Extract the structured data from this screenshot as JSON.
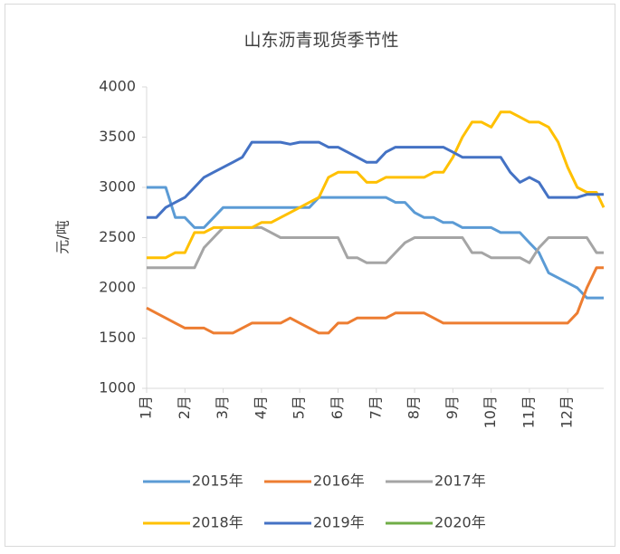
{
  "chart_data": {
    "type": "line",
    "title": "山东沥青现货季节性",
    "y_label": "元/吨",
    "x": [
      1,
      1.25,
      1.5,
      1.75,
      2,
      2.25,
      2.5,
      2.75,
      3,
      3.25,
      3.5,
      3.75,
      4,
      4.25,
      4.5,
      4.75,
      5,
      5.25,
      5.5,
      5.75,
      6,
      6.25,
      6.5,
      6.75,
      7,
      7.25,
      7.5,
      7.75,
      8,
      8.25,
      8.5,
      8.75,
      9,
      9.25,
      9.5,
      9.75,
      10,
      10.25,
      10.5,
      10.75,
      11,
      11.25,
      11.5,
      11.75,
      12,
      12.25,
      12.5,
      12.75,
      12.94
    ],
    "xlim": [
      1,
      12.94
    ],
    "xticks": [
      {
        "value": 1,
        "label": "1月"
      },
      {
        "value": 2,
        "label": "2月"
      },
      {
        "value": 3,
        "label": "3月"
      },
      {
        "value": 4,
        "label": "4月"
      },
      {
        "value": 5,
        "label": "5月"
      },
      {
        "value": 6,
        "label": "6月"
      },
      {
        "value": 7,
        "label": "7月"
      },
      {
        "value": 8,
        "label": "8月"
      },
      {
        "value": 9,
        "label": "9月"
      },
      {
        "value": 10,
        "label": "10月"
      },
      {
        "value": 11,
        "label": "11月"
      },
      {
        "value": 12,
        "label": "12月"
      }
    ],
    "ylim": [
      1000,
      4000
    ],
    "yticks": [
      1000,
      1500,
      2000,
      2500,
      3000,
      3500,
      4000
    ],
    "grid": false,
    "series": [
      {
        "name": "2015年",
        "color": "#5b9bd5",
        "values": [
          3000,
          3000,
          3000,
          2700,
          2700,
          2600,
          2600,
          2700,
          2800,
          2800,
          2800,
          2800,
          2800,
          2800,
          2800,
          2800,
          2800,
          2800,
          2900,
          2900,
          2900,
          2900,
          2900,
          2900,
          2900,
          2900,
          2850,
          2850,
          2750,
          2700,
          2700,
          2650,
          2650,
          2600,
          2600,
          2600,
          2600,
          2550,
          2550,
          2550,
          2450,
          2350,
          2150,
          2100,
          2050,
          2000,
          1900,
          1900,
          1900
        ]
      },
      {
        "name": "2016年",
        "color": "#ed7d31",
        "values": [
          1800,
          1750,
          1700,
          1650,
          1600,
          1600,
          1600,
          1550,
          1550,
          1550,
          1600,
          1650,
          1650,
          1650,
          1650,
          1700,
          1650,
          1600,
          1550,
          1550,
          1650,
          1650,
          1700,
          1700,
          1700,
          1700,
          1750,
          1750,
          1750,
          1750,
          1700,
          1650,
          1650,
          1650,
          1650,
          1650,
          1650,
          1650,
          1650,
          1650,
          1650,
          1650,
          1650,
          1650,
          1650,
          1750,
          2000,
          2200,
          2200
        ]
      },
      {
        "name": "2017年",
        "color": "#a5a5a5",
        "values": [
          2200,
          2200,
          2200,
          2200,
          2200,
          2200,
          2400,
          2500,
          2600,
          2600,
          2600,
          2600,
          2600,
          2550,
          2500,
          2500,
          2500,
          2500,
          2500,
          2500,
          2500,
          2300,
          2300,
          2250,
          2250,
          2250,
          2350,
          2450,
          2500,
          2500,
          2500,
          2500,
          2500,
          2500,
          2350,
          2350,
          2300,
          2300,
          2300,
          2300,
          2250,
          2400,
          2500,
          2500,
          2500,
          2500,
          2500,
          2350,
          2350
        ]
      },
      {
        "name": "2018年",
        "color": "#ffc000",
        "values": [
          2300,
          2300,
          2300,
          2350,
          2350,
          2550,
          2550,
          2600,
          2600,
          2600,
          2600,
          2600,
          2650,
          2650,
          2700,
          2750,
          2800,
          2850,
          2900,
          3100,
          3150,
          3150,
          3150,
          3050,
          3050,
          3100,
          3100,
          3100,
          3100,
          3100,
          3150,
          3150,
          3300,
          3500,
          3650,
          3650,
          3600,
          3750,
          3750,
          3700,
          3650,
          3650,
          3600,
          3450,
          3200,
          3000,
          2950,
          2950,
          2800
        ]
      },
      {
        "name": "2019年",
        "color": "#4472c4",
        "values": [
          2700,
          2700,
          2800,
          2850,
          2900,
          3000,
          3100,
          3150,
          3200,
          3250,
          3300,
          3450,
          3450,
          3450,
          3450,
          3430,
          3450,
          3450,
          3450,
          3400,
          3400,
          3350,
          3300,
          3250,
          3250,
          3350,
          3400,
          3400,
          3400,
          3400,
          3400,
          3400,
          3350,
          3300,
          3300,
          3300,
          3300,
          3300,
          3150,
          3050,
          3100,
          3050,
          2900,
          2900,
          2900,
          2900,
          2930,
          2930,
          2930
        ]
      },
      {
        "name": "2020年",
        "color": "#70ad47",
        "values": [
          null,
          null,
          null,
          null,
          null,
          null,
          null,
          null,
          null,
          null,
          null,
          null,
          null,
          null,
          null,
          null,
          null,
          null,
          null,
          null,
          null,
          null,
          null,
          null,
          null,
          null,
          null,
          null,
          null,
          null,
          null,
          null,
          null,
          null,
          null,
          null,
          null,
          null,
          null,
          null,
          null,
          null,
          null,
          null,
          null,
          null,
          null,
          null,
          null
        ]
      }
    ]
  }
}
